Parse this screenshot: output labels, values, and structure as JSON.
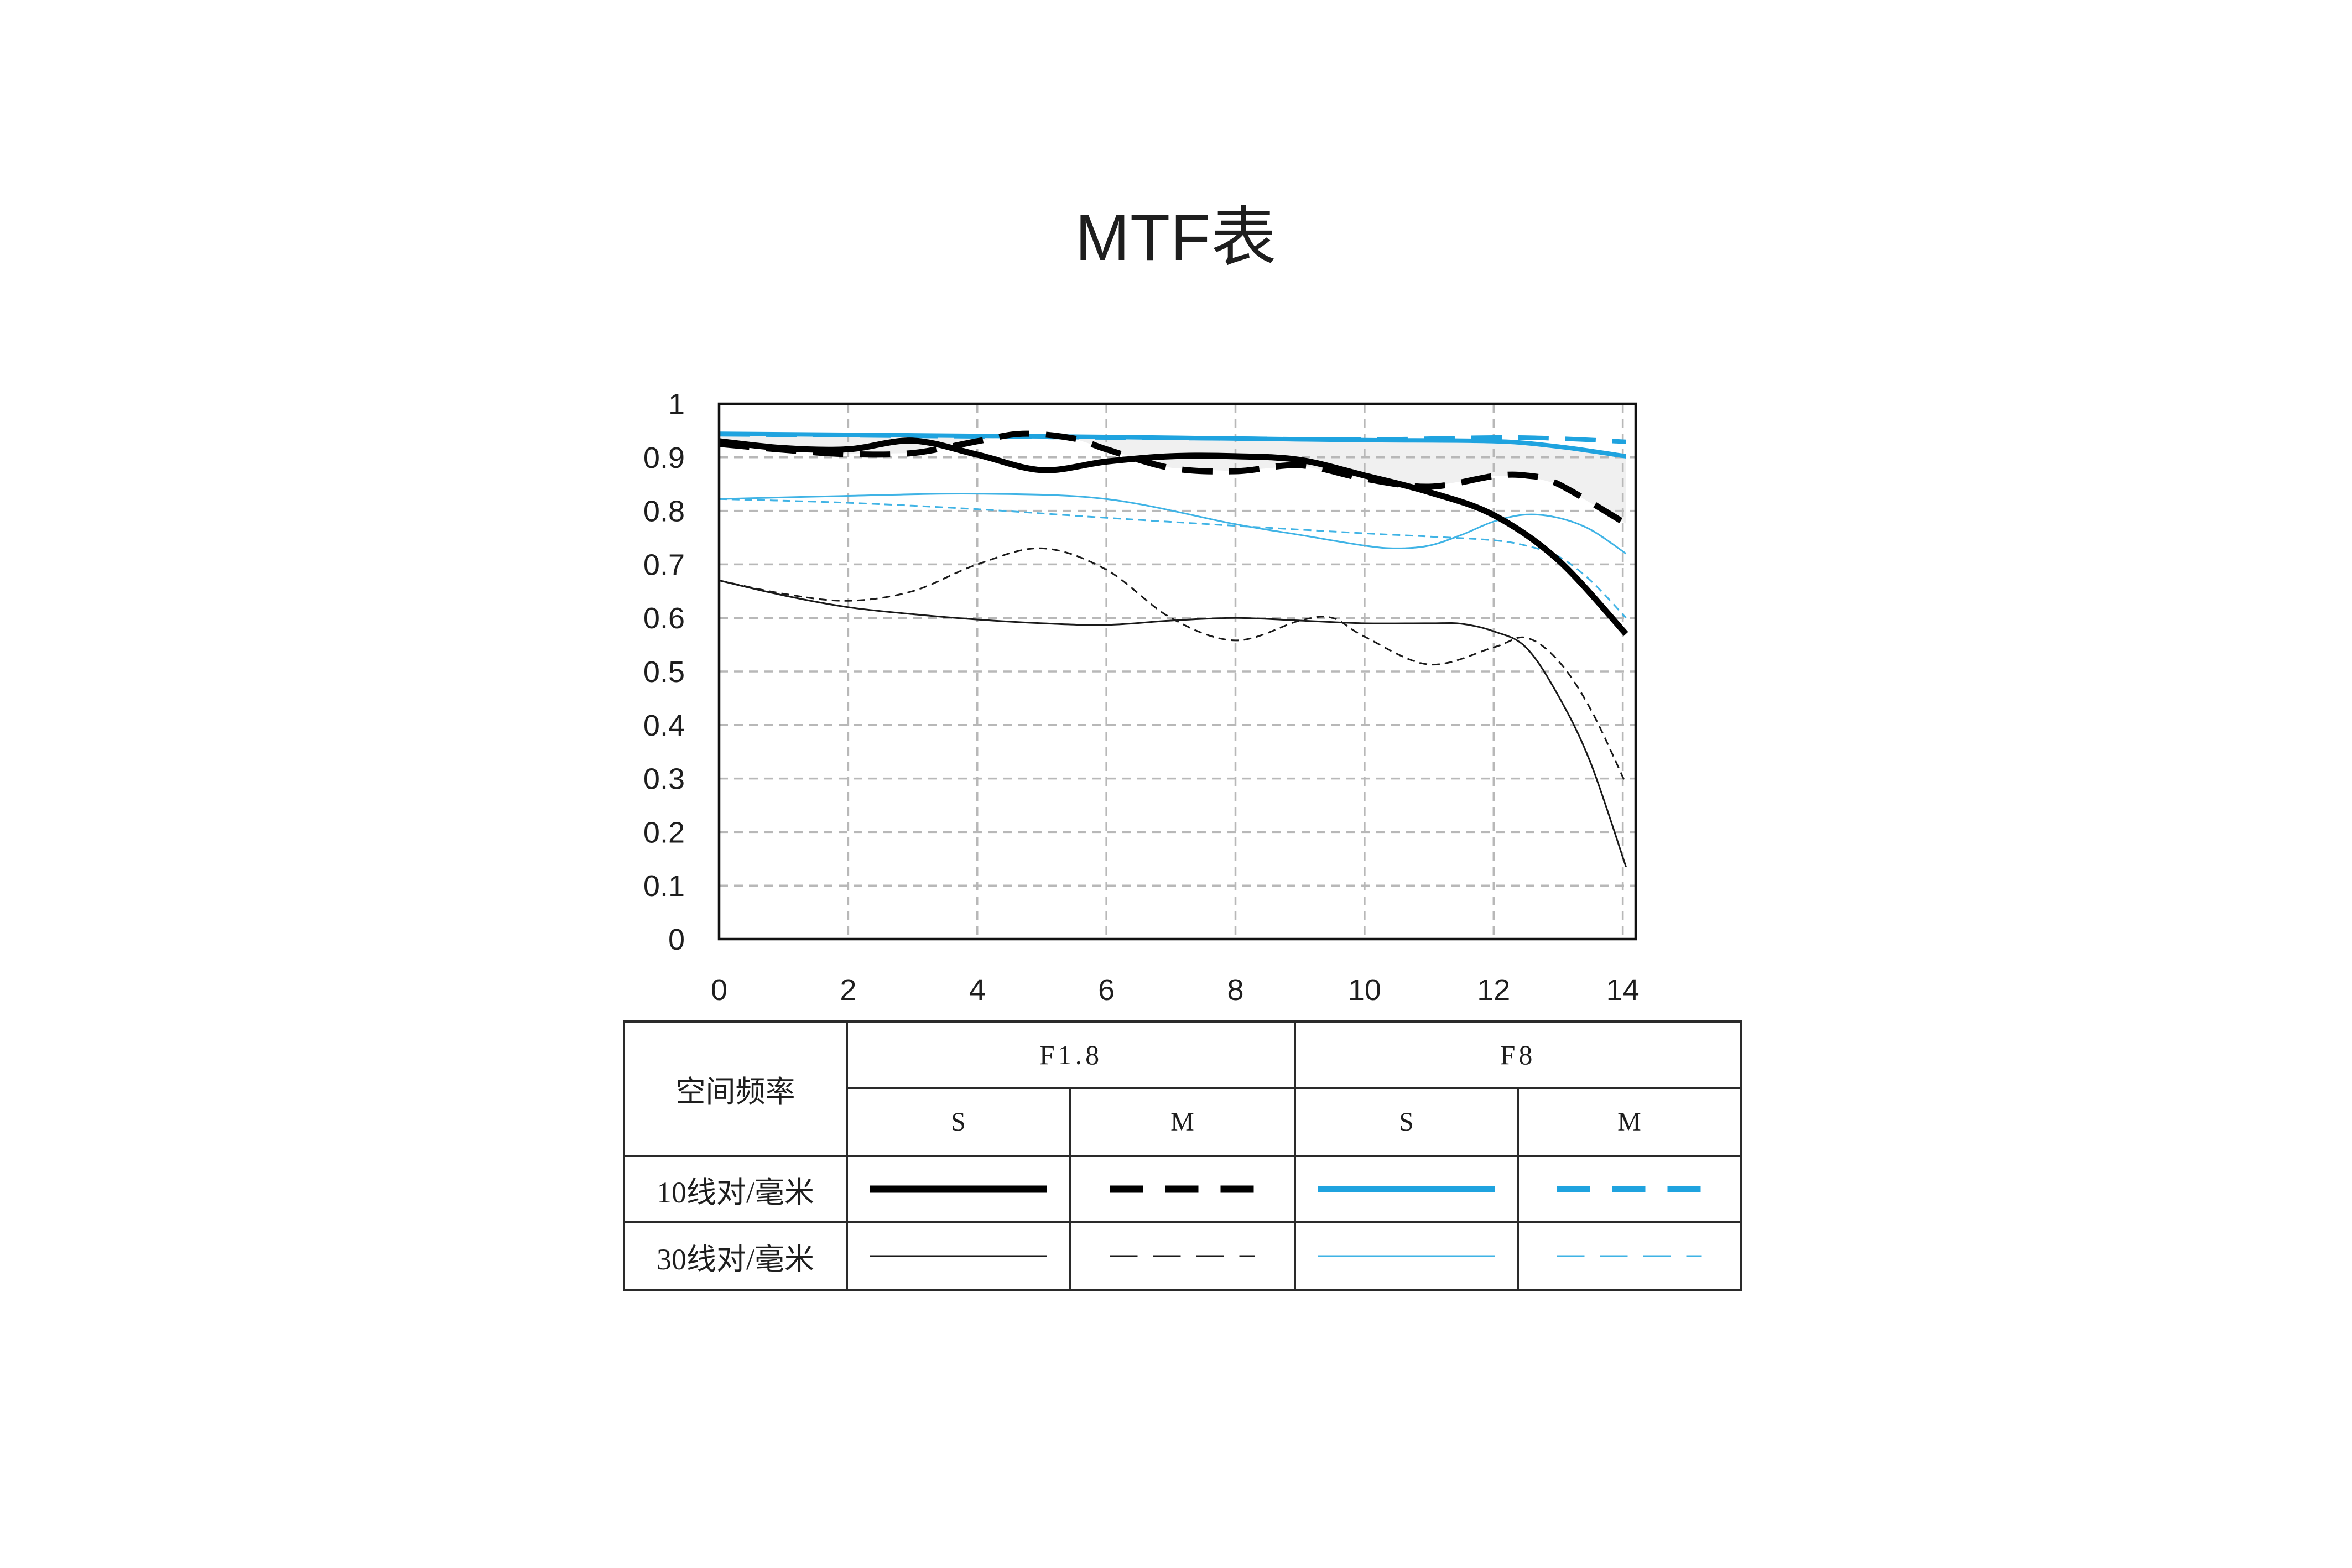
{
  "chart_data": {
    "type": "line",
    "title": "MTF表",
    "xlabel": "",
    "ylabel": "",
    "xlim": [
      0,
      14.2
    ],
    "ylim": [
      0,
      1
    ],
    "grid": true,
    "grid_style": "dashed",
    "x_ticks": [
      0,
      2,
      4,
      6,
      8,
      10,
      12,
      14
    ],
    "x_tick_labels": [
      "0",
      "2",
      "4",
      "6",
      "8",
      "10",
      "12",
      "14"
    ],
    "y_ticks": [
      1,
      0.9,
      0.8,
      0.7,
      0.6,
      0.5,
      0.4,
      0.3,
      0.2,
      0.1,
      0
    ],
    "y_tick_labels": [
      "1",
      "0.9",
      "0.8",
      "0.7",
      "0.6",
      "0.5",
      "0.4",
      "0.3",
      "0.2",
      "0.1",
      "0"
    ],
    "band": {
      "upper": 2,
      "lower": 1,
      "color": "#f0f0f0"
    },
    "series": [
      {
        "color": "#000000",
        "line_style": "solid",
        "line_weight": "thick",
        "x": [
          0,
          1,
          2,
          3,
          4,
          5,
          6,
          7,
          8,
          9,
          10,
          11,
          12,
          13,
          14.05
        ],
        "y": [
          0.93,
          0.917,
          0.915,
          0.931,
          0.905,
          0.876,
          0.892,
          0.902,
          0.902,
          0.895,
          0.866,
          0.835,
          0.792,
          0.708,
          0.57
        ]
      },
      {
        "color": "#000000",
        "line_style": "dashed",
        "line_weight": "thick",
        "x": [
          0,
          1,
          2,
          3,
          4,
          4.7,
          5.5,
          6,
          7,
          8,
          9,
          10,
          11,
          12,
          12.5,
          13,
          14.05
        ],
        "y": [
          0.925,
          0.914,
          0.906,
          0.908,
          0.93,
          0.944,
          0.935,
          0.915,
          0.88,
          0.874,
          0.885,
          0.86,
          0.845,
          0.865,
          0.866,
          0.85,
          0.776
        ]
      },
      {
        "color": "#1fa3df",
        "line_style": "solid",
        "line_weight": "thick",
        "x": [
          0,
          2,
          4,
          6,
          8,
          10,
          12,
          13,
          14.05
        ],
        "y": [
          0.944,
          0.942,
          0.94,
          0.938,
          0.935,
          0.932,
          0.93,
          0.92,
          0.902
        ]
      },
      {
        "color": "#1fa3df",
        "line_style": "dashed",
        "line_weight": "thick",
        "x": [
          0,
          2,
          4,
          6,
          8,
          10,
          12,
          13,
          14.05
        ],
        "y": [
          0.943,
          0.941,
          0.939,
          0.937,
          0.935,
          0.933,
          0.937,
          0.935,
          0.929
        ]
      },
      {
        "color": "#1a1a1a",
        "line_style": "solid",
        "line_weight": "thin",
        "x": [
          0,
          1,
          2,
          3,
          4,
          5,
          6,
          7,
          8,
          9,
          10,
          11,
          11.5,
          12,
          12.5,
          13,
          13.5,
          14.05
        ],
        "y": [
          0.67,
          0.642,
          0.62,
          0.607,
          0.597,
          0.59,
          0.587,
          0.595,
          0.6,
          0.595,
          0.59,
          0.59,
          0.589,
          0.575,
          0.545,
          0.455,
          0.33,
          0.135
        ]
      },
      {
        "color": "#1a1a1a",
        "line_style": "dashed",
        "line_weight": "thin",
        "x": [
          0,
          1,
          2,
          3,
          4,
          5,
          6,
          7,
          8,
          9,
          9.5,
          10,
          11,
          12,
          12.5,
          13,
          13.5,
          14.05
        ],
        "y": [
          0.67,
          0.645,
          0.632,
          0.65,
          0.7,
          0.73,
          0.69,
          0.6,
          0.558,
          0.595,
          0.6,
          0.565,
          0.513,
          0.545,
          0.563,
          0.52,
          0.43,
          0.29
        ]
      },
      {
        "color": "#3fb3e5",
        "line_style": "solid",
        "line_weight": "thin",
        "x": [
          0,
          2,
          4,
          6,
          8,
          9,
          10,
          10.5,
          11,
          11.5,
          12,
          12.5,
          13,
          13.5,
          14.05
        ],
        "y": [
          0.822,
          0.828,
          0.832,
          0.822,
          0.775,
          0.755,
          0.735,
          0.73,
          0.735,
          0.755,
          0.78,
          0.793,
          0.787,
          0.765,
          0.72
        ]
      },
      {
        "color": "#3fb3e5",
        "line_style": "dashed",
        "line_weight": "thin",
        "x": [
          0,
          2,
          4,
          6,
          8,
          10,
          11,
          12,
          12.5,
          13,
          13.5,
          14.05
        ],
        "y": [
          0.822,
          0.815,
          0.803,
          0.787,
          0.772,
          0.758,
          0.752,
          0.745,
          0.735,
          0.715,
          0.67,
          0.6
        ]
      }
    ]
  },
  "legend_table": {
    "header_label": "空间频率",
    "apertures": [
      "F1.8",
      "F8"
    ],
    "orientations": [
      "S",
      "M",
      "S",
      "M"
    ],
    "rows": [
      "10线对/毫米",
      "30线对/毫米"
    ]
  }
}
